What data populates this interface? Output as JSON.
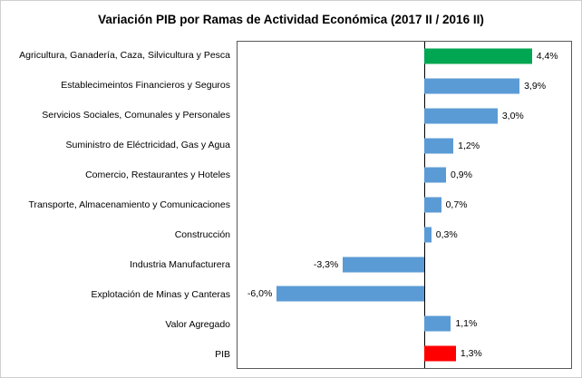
{
  "chart_data": {
    "type": "bar",
    "orientation": "horizontal",
    "title": "Variación PIB por Ramas de Actividad Económica (2017 II / 2016 II)",
    "categories": [
      "Agricultura, Ganadería, Caza, Silvicultura y Pesca",
      "Establecimeintos Financieros y Seguros",
      "Servicios Sociales, Comunales y Personales",
      "Suministro de Eléctricidad, Gas y Agua",
      "Comercio, Restaurantes y Hoteles",
      "Transporte, Almacenamiento y Comunicaciones",
      "Construcción",
      "Industria Manufacturera",
      "Explotación de Minas y Canteras",
      "Valor Agregado",
      "PIB"
    ],
    "values": [
      4.4,
      3.9,
      3.0,
      1.2,
      0.9,
      0.7,
      0.3,
      -3.3,
      -6.0,
      1.1,
      1.3
    ],
    "value_labels": [
      "4,4%",
      "3,9%",
      "3,0%",
      "1,2%",
      "0,9%",
      "0,7%",
      "0,3%",
      "-3,3%",
      "-6,0%",
      "1,1%",
      "1,3%"
    ],
    "bar_colors": [
      "#00A651",
      "#5B9BD5",
      "#5B9BD5",
      "#5B9BD5",
      "#5B9BD5",
      "#5B9BD5",
      "#5B9BD5",
      "#5B9BD5",
      "#5B9BD5",
      "#5B9BD5",
      "#FF0000"
    ],
    "xlim": [
      -7.6,
      6.0
    ],
    "grid": false,
    "legend": false,
    "colors": {
      "highlight_green": "#00A651",
      "default_blue": "#5B9BD5",
      "pib_red": "#FF0000",
      "axis_line": "#000000",
      "plot_border": "#595959"
    }
  }
}
